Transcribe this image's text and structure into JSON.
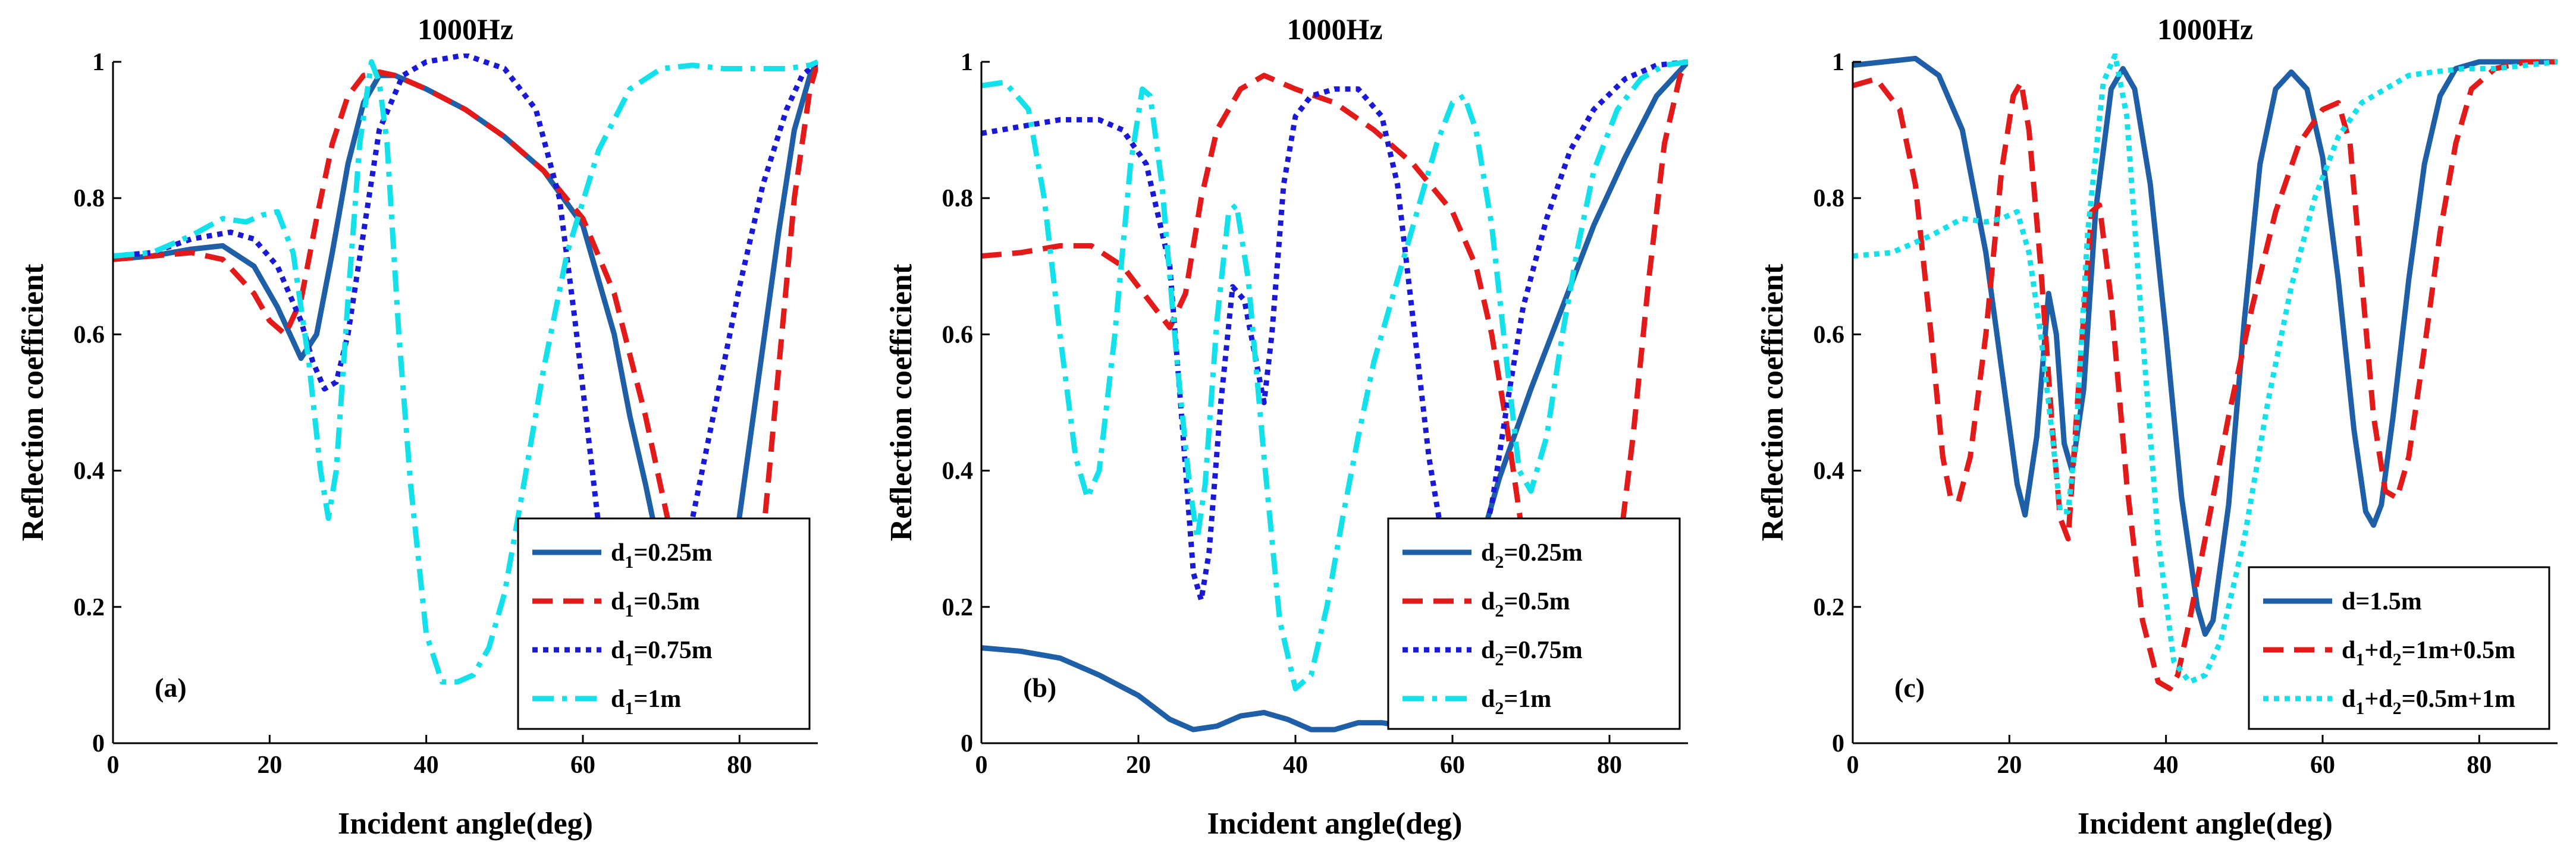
{
  "chart_data": [
    {
      "type": "line",
      "panel_label": "(a)",
      "title": "1000Hz",
      "xlabel": "Incident angle(deg)",
      "ylabel": "Reflection coefficient",
      "xlim": [
        0,
        90
      ],
      "ylim": [
        0,
        1
      ],
      "xticks": [
        "0",
        "20",
        "40",
        "60",
        "80"
      ],
      "yticks": [
        "0",
        "0.2",
        "0.4",
        "0.6",
        "0.8",
        "1"
      ],
      "legend_position": "bottom-right",
      "series": [
        {
          "name": "d1=0.25m",
          "legend": {
            "base": "d",
            "sub": "1",
            "rest": "=0.25m"
          },
          "color": "#1f5fa8",
          "style": "solid",
          "x": [
            0,
            5,
            10,
            14,
            18,
            21,
            24,
            26,
            28,
            30,
            32,
            34,
            36,
            40,
            45,
            50,
            55,
            60,
            64,
            66,
            68,
            70,
            73,
            76,
            79,
            82,
            85,
            87,
            89,
            90
          ],
          "y": [
            0.71,
            0.715,
            0.725,
            0.73,
            0.7,
            0.64,
            0.565,
            0.6,
            0.72,
            0.85,
            0.94,
            0.98,
            0.98,
            0.96,
            0.93,
            0.89,
            0.84,
            0.76,
            0.6,
            0.48,
            0.38,
            0.27,
            0.15,
            0.1,
            0.25,
            0.5,
            0.75,
            0.9,
            0.98,
            1.0
          ]
        },
        {
          "name": "d1=0.5m",
          "legend": {
            "base": "d",
            "sub": "1",
            "rest": "=0.5m"
          },
          "color": "#e21a1a",
          "style": "dashed",
          "x": [
            0,
            5,
            10,
            14,
            18,
            20,
            22,
            24,
            26,
            28,
            30,
            32,
            34,
            36,
            40,
            45,
            50,
            55,
            60,
            64,
            68,
            71,
            73,
            75,
            77,
            79,
            81,
            83,
            85,
            87,
            89,
            90
          ],
          "y": [
            0.71,
            0.715,
            0.72,
            0.71,
            0.66,
            0.62,
            0.6,
            0.65,
            0.77,
            0.88,
            0.95,
            0.98,
            0.985,
            0.98,
            0.96,
            0.93,
            0.89,
            0.84,
            0.77,
            0.66,
            0.48,
            0.32,
            0.22,
            0.12,
            0.07,
            0.07,
            0.12,
            0.3,
            0.55,
            0.8,
            0.96,
            1.0
          ]
        },
        {
          "name": "d1=0.75m",
          "legend": {
            "base": "d",
            "sub": "1",
            "rest": "=0.75m"
          },
          "color": "#1a1ad6",
          "style": "dotted",
          "x": [
            0,
            5,
            10,
            15,
            18,
            21,
            24,
            25.5,
            27,
            28.5,
            30,
            32,
            34,
            37,
            40,
            45,
            50,
            54,
            57,
            59,
            61,
            63,
            65,
            67,
            69,
            71,
            74,
            77,
            80,
            83,
            86,
            88,
            90
          ],
          "y": [
            0.715,
            0.72,
            0.74,
            0.75,
            0.74,
            0.7,
            0.62,
            0.56,
            0.52,
            0.53,
            0.6,
            0.75,
            0.9,
            0.98,
            1.0,
            1.01,
            0.99,
            0.93,
            0.8,
            0.62,
            0.42,
            0.22,
            0.09,
            0.05,
            0.07,
            0.16,
            0.33,
            0.5,
            0.67,
            0.82,
            0.93,
            0.98,
            1.0
          ]
        },
        {
          "name": "d1=1m",
          "legend": {
            "base": "d",
            "sub": "1",
            "rest": "=1m"
          },
          "color": "#12e0ea",
          "style": "dashdot",
          "x": [
            0,
            5,
            10,
            14,
            17,
            19,
            21,
            23,
            25,
            26.5,
            27.5,
            28.5,
            30,
            31.5,
            33,
            34,
            35,
            36.5,
            38,
            40,
            42,
            44,
            46,
            48,
            50,
            52,
            55,
            58,
            62,
            66,
            70,
            74,
            78,
            82,
            86,
            89,
            90
          ],
          "y": [
            0.715,
            0.72,
            0.745,
            0.77,
            0.765,
            0.775,
            0.78,
            0.72,
            0.56,
            0.4,
            0.33,
            0.4,
            0.65,
            0.88,
            1.0,
            0.97,
            0.88,
            0.6,
            0.38,
            0.16,
            0.09,
            0.09,
            0.1,
            0.14,
            0.22,
            0.35,
            0.55,
            0.72,
            0.87,
            0.96,
            0.99,
            0.995,
            0.99,
            0.99,
            0.99,
            0.995,
            1.0
          ]
        }
      ]
    },
    {
      "type": "line",
      "panel_label": "(b)",
      "title": "1000Hz",
      "xlabel": "Incident angle(deg)",
      "ylabel": "Reflection coefficient",
      "xlim": [
        0,
        90
      ],
      "ylim": [
        0,
        1
      ],
      "xticks": [
        "0",
        "20",
        "40",
        "60",
        "80"
      ],
      "yticks": [
        "0",
        "0.2",
        "0.4",
        "0.6",
        "0.8",
        "1"
      ],
      "legend_position": "bottom-right",
      "series": [
        {
          "name": "d2=0.25m",
          "legend": {
            "base": "d",
            "sub": "2",
            "rest": "=0.25m"
          },
          "color": "#1f5fa8",
          "style": "solid",
          "x": [
            0,
            5,
            10,
            15,
            20,
            24,
            27,
            30,
            33,
            36,
            39,
            42,
            45,
            48,
            51,
            54,
            57,
            60,
            63,
            66,
            70,
            74,
            78,
            82,
            86,
            90
          ],
          "y": [
            0.14,
            0.135,
            0.125,
            0.1,
            0.07,
            0.035,
            0.02,
            0.025,
            0.04,
            0.045,
            0.035,
            0.02,
            0.02,
            0.03,
            0.03,
            0.025,
            0.06,
            0.15,
            0.27,
            0.39,
            0.52,
            0.64,
            0.76,
            0.86,
            0.95,
            1.0
          ]
        },
        {
          "name": "d2=0.5m",
          "legend": {
            "base": "d",
            "sub": "2",
            "rest": "=0.5m"
          },
          "color": "#e21a1a",
          "style": "dashed",
          "x": [
            0,
            5,
            10,
            14,
            18,
            22,
            24,
            26,
            28,
            30,
            33,
            36,
            40,
            45,
            50,
            55,
            60,
            63,
            65,
            67,
            69,
            71,
            73,
            75,
            77,
            79,
            81,
            83,
            85,
            87,
            89,
            90
          ],
          "y": [
            0.715,
            0.72,
            0.73,
            0.73,
            0.7,
            0.64,
            0.61,
            0.66,
            0.8,
            0.9,
            0.96,
            0.98,
            0.96,
            0.94,
            0.9,
            0.85,
            0.78,
            0.7,
            0.6,
            0.46,
            0.3,
            0.14,
            0.05,
            0.03,
            0.05,
            0.12,
            0.26,
            0.45,
            0.68,
            0.88,
            0.98,
            1.0
          ]
        },
        {
          "name": "d2=0.75m",
          "legend": {
            "base": "d",
            "sub": "2",
            "rest": "=0.75m"
          },
          "color": "#1a1ad6",
          "style": "dotted",
          "x": [
            0,
            5,
            10,
            15,
            18,
            21,
            24,
            25.5,
            27,
            28,
            29,
            30.5,
            32,
            33.5,
            35,
            36,
            37,
            38.5,
            40,
            42,
            45,
            48,
            51,
            53,
            55,
            57,
            59,
            61,
            63,
            65,
            67,
            69,
            72,
            75,
            78,
            82,
            86,
            90
          ],
          "y": [
            0.895,
            0.905,
            0.915,
            0.915,
            0.9,
            0.85,
            0.7,
            0.48,
            0.25,
            0.21,
            0.28,
            0.5,
            0.67,
            0.65,
            0.56,
            0.5,
            0.6,
            0.82,
            0.92,
            0.95,
            0.96,
            0.96,
            0.92,
            0.82,
            0.62,
            0.42,
            0.28,
            0.22,
            0.25,
            0.35,
            0.5,
            0.64,
            0.77,
            0.87,
            0.93,
            0.975,
            0.995,
            1.0
          ]
        },
        {
          "name": "d2=1m",
          "legend": {
            "base": "d",
            "sub": "2",
            "rest": "=1m"
          },
          "color": "#12e0ea",
          "style": "dashdot",
          "x": [
            0,
            3,
            6,
            8,
            10,
            12,
            13.5,
            15,
            17,
            19,
            20.5,
            21.5,
            23,
            25,
            26.5,
            27.5,
            28.5,
            30,
            31.5,
            32.5,
            34,
            36,
            38,
            40,
            42,
            44,
            46,
            48,
            50,
            52,
            55,
            58,
            60,
            61.5,
            63,
            65,
            67,
            68.5,
            70,
            72,
            74,
            76,
            78,
            81,
            84,
            87,
            90
          ],
          "y": [
            0.965,
            0.97,
            0.93,
            0.8,
            0.6,
            0.42,
            0.36,
            0.4,
            0.6,
            0.85,
            0.96,
            0.95,
            0.82,
            0.55,
            0.38,
            0.3,
            0.38,
            0.62,
            0.78,
            0.79,
            0.68,
            0.42,
            0.18,
            0.08,
            0.1,
            0.2,
            0.33,
            0.45,
            0.56,
            0.64,
            0.76,
            0.88,
            0.94,
            0.95,
            0.9,
            0.76,
            0.55,
            0.4,
            0.37,
            0.45,
            0.6,
            0.73,
            0.84,
            0.93,
            0.975,
            0.995,
            1.0
          ]
        }
      ]
    },
    {
      "type": "line",
      "panel_label": "(c)",
      "title": "1000Hz",
      "xlabel": "Incident angle(deg)",
      "ylabel": "Reflection coefficient",
      "xlim": [
        0,
        90
      ],
      "ylim": [
        0,
        1
      ],
      "xticks": [
        "0",
        "20",
        "40",
        "60",
        "80"
      ],
      "yticks": [
        "0",
        "0.2",
        "0.4",
        "0.6",
        "0.8",
        "1"
      ],
      "legend_position": "bottom-right",
      "series": [
        {
          "name": "d=1.5m",
          "legend": {
            "base": "d",
            "sub": "",
            "rest": "=1.5m"
          },
          "color": "#1f5fa8",
          "style": "solid",
          "x": [
            0,
            4,
            8,
            11,
            14,
            17,
            19,
            21,
            22,
            23.5,
            25,
            26,
            27,
            28,
            29.5,
            31,
            33,
            34.5,
            36,
            38,
            40,
            42,
            44,
            45,
            46,
            48,
            50,
            52,
            54,
            56,
            58,
            60,
            62,
            64,
            65.5,
            66.5,
            67.5,
            69,
            71,
            73,
            75,
            77,
            80,
            85,
            90
          ],
          "y": [
            0.995,
            1.0,
            1.005,
            0.98,
            0.9,
            0.72,
            0.55,
            0.38,
            0.335,
            0.45,
            0.66,
            0.6,
            0.44,
            0.4,
            0.52,
            0.78,
            0.96,
            0.99,
            0.96,
            0.82,
            0.6,
            0.36,
            0.2,
            0.16,
            0.18,
            0.35,
            0.62,
            0.85,
            0.96,
            0.985,
            0.96,
            0.86,
            0.68,
            0.46,
            0.34,
            0.32,
            0.35,
            0.48,
            0.68,
            0.85,
            0.95,
            0.99,
            1.0,
            1.0,
            1.0
          ]
        },
        {
          "name": "d1+d2=1m+0.5m",
          "legend": {
            "base": "d",
            "sub": "1",
            "rest": "+d",
            "sub2": "2",
            "rest2": "=1m+0.5m"
          },
          "color": "#e21a1a",
          "style": "dashed",
          "x": [
            0,
            3,
            6,
            8,
            10,
            11.5,
            12.5,
            13.5,
            15,
            17,
            19,
            20.5,
            21.5,
            22.5,
            24,
            25.5,
            26.5,
            27.5,
            29,
            30.5,
            31.5,
            33,
            35,
            37,
            39,
            40.5,
            41.5,
            43,
            45,
            48,
            51,
            54,
            57,
            60,
            62,
            63.5,
            65,
            66.5,
            68,
            69.5,
            71,
            73,
            75,
            77,
            79,
            82,
            86,
            90
          ],
          "y": [
            0.965,
            0.975,
            0.93,
            0.82,
            0.6,
            0.42,
            0.36,
            0.355,
            0.42,
            0.6,
            0.84,
            0.95,
            0.97,
            0.9,
            0.7,
            0.46,
            0.33,
            0.3,
            0.55,
            0.78,
            0.79,
            0.65,
            0.38,
            0.18,
            0.09,
            0.08,
            0.1,
            0.18,
            0.3,
            0.48,
            0.64,
            0.78,
            0.88,
            0.93,
            0.94,
            0.88,
            0.68,
            0.48,
            0.37,
            0.36,
            0.42,
            0.58,
            0.75,
            0.88,
            0.96,
            0.99,
            1.0,
            1.0
          ]
        },
        {
          "name": "d1+d2=0.5m+1m",
          "legend": {
            "base": "d",
            "sub": "1",
            "rest": "+d",
            "sub2": "2",
            "rest2": "=0.5m+1m"
          },
          "color": "#12e0ea",
          "style": "dotted",
          "x": [
            0,
            5,
            10,
            14,
            17,
            19,
            21,
            22.5,
            24,
            25.5,
            26.5,
            27.5,
            28.5,
            30,
            32,
            33.5,
            35,
            37,
            39,
            41,
            43,
            45,
            47,
            50,
            53,
            56,
            59,
            62,
            65,
            68,
            71,
            74,
            78,
            82,
            86,
            90
          ],
          "y": [
            0.715,
            0.72,
            0.745,
            0.77,
            0.765,
            0.77,
            0.78,
            0.72,
            0.6,
            0.45,
            0.34,
            0.34,
            0.45,
            0.75,
            0.97,
            1.01,
            0.92,
            0.6,
            0.3,
            0.12,
            0.09,
            0.1,
            0.15,
            0.3,
            0.5,
            0.67,
            0.8,
            0.89,
            0.94,
            0.96,
            0.98,
            0.985,
            0.99,
            0.99,
            0.995,
            1.0
          ]
        }
      ]
    }
  ]
}
